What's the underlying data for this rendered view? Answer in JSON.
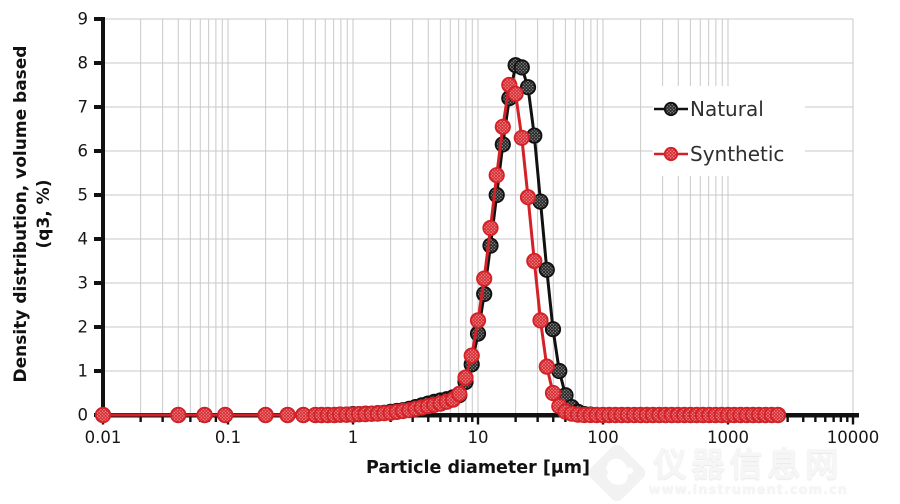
{
  "chart_data": {
    "type": "line",
    "title": "",
    "xlabel": "Particle diameter [μm]",
    "ylabel_line1": "Density distribution, volume based",
    "ylabel_line2": "(q3, %)",
    "x_scale": "log",
    "xlim": [
      0.01,
      10000
    ],
    "ylim": [
      0,
      9
    ],
    "x_ticks": [
      0.01,
      0.1,
      1,
      10,
      100,
      1000,
      10000
    ],
    "x_tick_labels": [
      "0.01",
      "0.1",
      "1",
      "10",
      "100",
      "1000",
      "10000"
    ],
    "y_ticks": [
      0,
      1,
      2,
      3,
      4,
      5,
      6,
      7,
      8,
      9
    ],
    "grid": true,
    "grid_color": "#c9c9c9",
    "axis_color": "#111111",
    "legend_position": "upper right",
    "x": [
      0.01,
      0.04,
      0.065,
      0.095,
      0.2,
      0.3,
      0.4,
      0.5,
      0.56,
      0.63,
      0.71,
      0.79,
      0.89,
      1.0,
      1.12,
      1.26,
      1.41,
      1.58,
      1.78,
      2.0,
      2.24,
      2.51,
      2.82,
      3.16,
      3.55,
      3.98,
      4.47,
      5.01,
      5.62,
      6.31,
      7.08,
      7.94,
      8.91,
      10.0,
      11.2,
      12.6,
      14.1,
      15.8,
      17.8,
      20.0,
      22.4,
      25.1,
      28.2,
      31.6,
      35.5,
      39.8,
      44.7,
      50.1,
      56.2,
      63.1,
      70.8,
      79.4,
      89.1,
      100,
      112,
      126,
      141,
      158,
      178,
      200,
      224,
      251,
      282,
      316,
      355,
      398,
      447,
      501,
      562,
      631,
      708,
      794,
      891,
      1000,
      1122,
      1259,
      1413,
      1585,
      1778,
      1995,
      2239,
      2512
    ],
    "series": [
      {
        "name": "Natural",
        "color": "#111111",
        "marker_fill": "#9a9a9a",
        "marker_hatch": "#1a1a1a",
        "values": [
          0,
          0,
          0,
          0,
          0,
          0,
          0,
          0,
          0,
          0,
          0,
          0.01,
          0.01,
          0.02,
          0.02,
          0.03,
          0.03,
          0.04,
          0.05,
          0.07,
          0.09,
          0.11,
          0.14,
          0.18,
          0.22,
          0.26,
          0.3,
          0.33,
          0.36,
          0.4,
          0.45,
          0.75,
          1.15,
          1.85,
          2.75,
          3.85,
          5.0,
          6.15,
          7.2,
          7.95,
          7.9,
          7.45,
          6.35,
          4.85,
          3.3,
          1.95,
          1.0,
          0.45,
          0.18,
          0.07,
          0.02,
          0.01,
          0,
          0,
          0,
          0,
          0,
          0,
          0,
          0,
          0,
          0,
          0,
          0,
          0,
          0,
          0,
          0,
          0,
          0,
          0,
          0,
          0,
          0,
          0,
          0,
          0,
          0,
          0,
          0,
          0,
          0
        ]
      },
      {
        "name": "Synthetic",
        "color": "#d42128",
        "marker_fill": "#f29d9d",
        "marker_hatch": "#d42128",
        "values": [
          0,
          0,
          0,
          0,
          0,
          0,
          0,
          0,
          0,
          0,
          0,
          0.01,
          0.01,
          0.01,
          0.02,
          0.02,
          0.03,
          0.03,
          0.04,
          0.05,
          0.07,
          0.09,
          0.11,
          0.14,
          0.17,
          0.2,
          0.23,
          0.26,
          0.3,
          0.35,
          0.48,
          0.85,
          1.35,
          2.15,
          3.1,
          4.25,
          5.45,
          6.55,
          7.5,
          7.3,
          6.3,
          4.95,
          3.5,
          2.15,
          1.1,
          0.5,
          0.2,
          0.08,
          0.03,
          0.01,
          0,
          0,
          0,
          0,
          0,
          0,
          0,
          0,
          0,
          0,
          0,
          0,
          0,
          0,
          0,
          0,
          0,
          0,
          0,
          0,
          0,
          0,
          0,
          0,
          0,
          0,
          0,
          0,
          0,
          0,
          0,
          0
        ]
      }
    ]
  },
  "legend": {
    "items": [
      {
        "label": "Natural"
      },
      {
        "label": "Synthetic"
      }
    ]
  },
  "watermark": {
    "site_name": "仪器信息网",
    "site_url": "www.instrument.com.cn"
  }
}
